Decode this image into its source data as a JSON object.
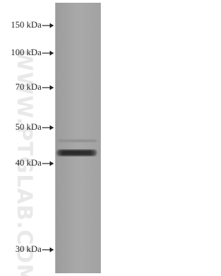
{
  "markers": [
    "150 kDa",
    "100 kDa",
    "70 kDa",
    "50 kDa",
    "40 kDa",
    "30 kDa"
  ],
  "watermark": "WWW.PTGLAB.COM"
}
